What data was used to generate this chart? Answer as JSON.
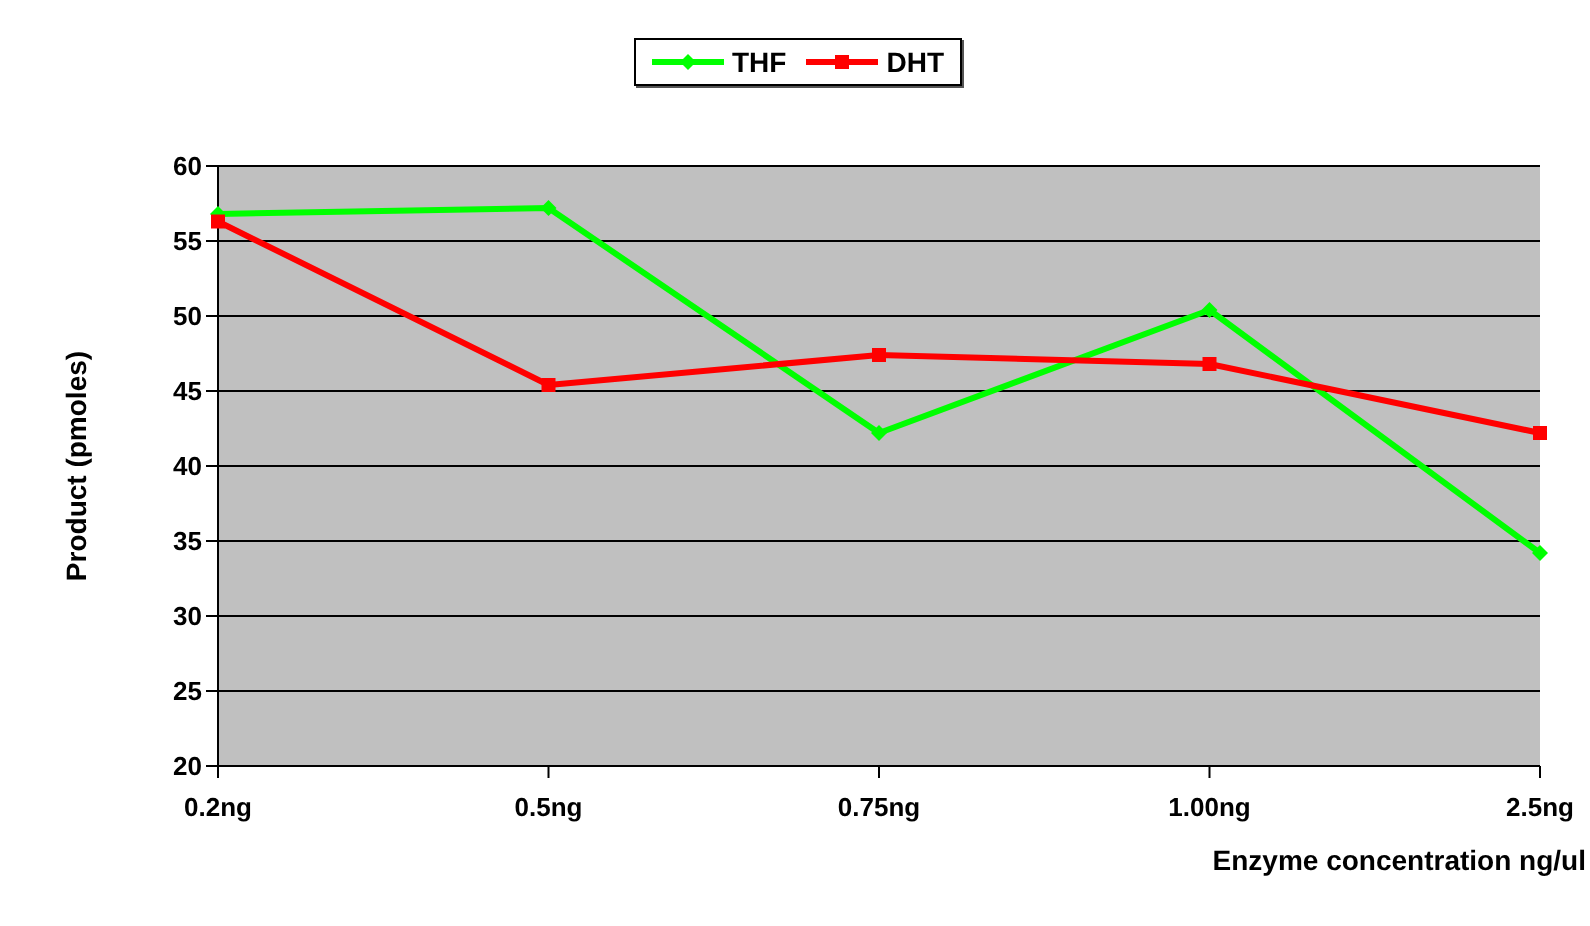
{
  "chart_data": {
    "type": "line",
    "categories": [
      "0.2ng",
      "0.5ng",
      "0.75ng",
      "1.00ng",
      "2.5ng"
    ],
    "series": [
      {
        "name": "THF",
        "color": "#00ff00",
        "marker": "diamond",
        "values": [
          56.8,
          57.2,
          42.2,
          50.4,
          34.2
        ]
      },
      {
        "name": "DHT",
        "color": "#ff0000",
        "marker": "square",
        "values": [
          56.3,
          45.4,
          47.4,
          46.8,
          42.2
        ]
      }
    ],
    "xlabel": "Enzyme concentration ng/ul",
    "ylabel": "Product (pmoles)",
    "ylim": [
      20,
      60
    ],
    "yticks": [
      20,
      25,
      30,
      35,
      40,
      45,
      50,
      55,
      60
    ],
    "grid": "y",
    "legend": "top"
  }
}
